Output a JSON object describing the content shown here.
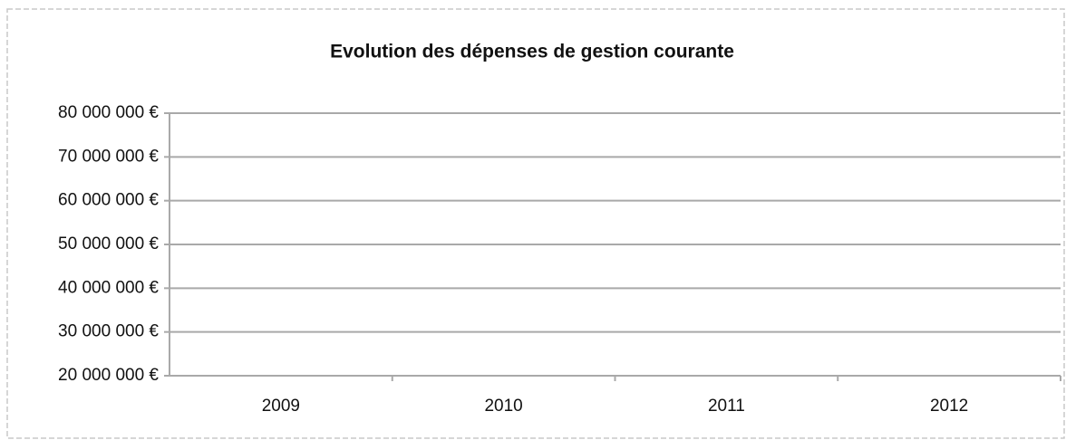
{
  "chart_data": {
    "type": "line",
    "title": "Evolution des dépenses de gestion courante",
    "categories": [
      "2009",
      "2010",
      "2011",
      "2012"
    ],
    "ylim": [
      20000000,
      80000000
    ],
    "yticks": [
      {
        "value": 20000000,
        "label": "20 000 000 €"
      },
      {
        "value": 30000000,
        "label": "30 000 000 €"
      },
      {
        "value": 40000000,
        "label": "40 000 000 €"
      },
      {
        "value": 50000000,
        "label": "50 000 000 €"
      },
      {
        "value": 60000000,
        "label": "60 000 000 €"
      },
      {
        "value": 70000000,
        "label": "70 000 000 €"
      },
      {
        "value": 80000000,
        "label": "80 000 000 €"
      }
    ],
    "grid": true
  }
}
